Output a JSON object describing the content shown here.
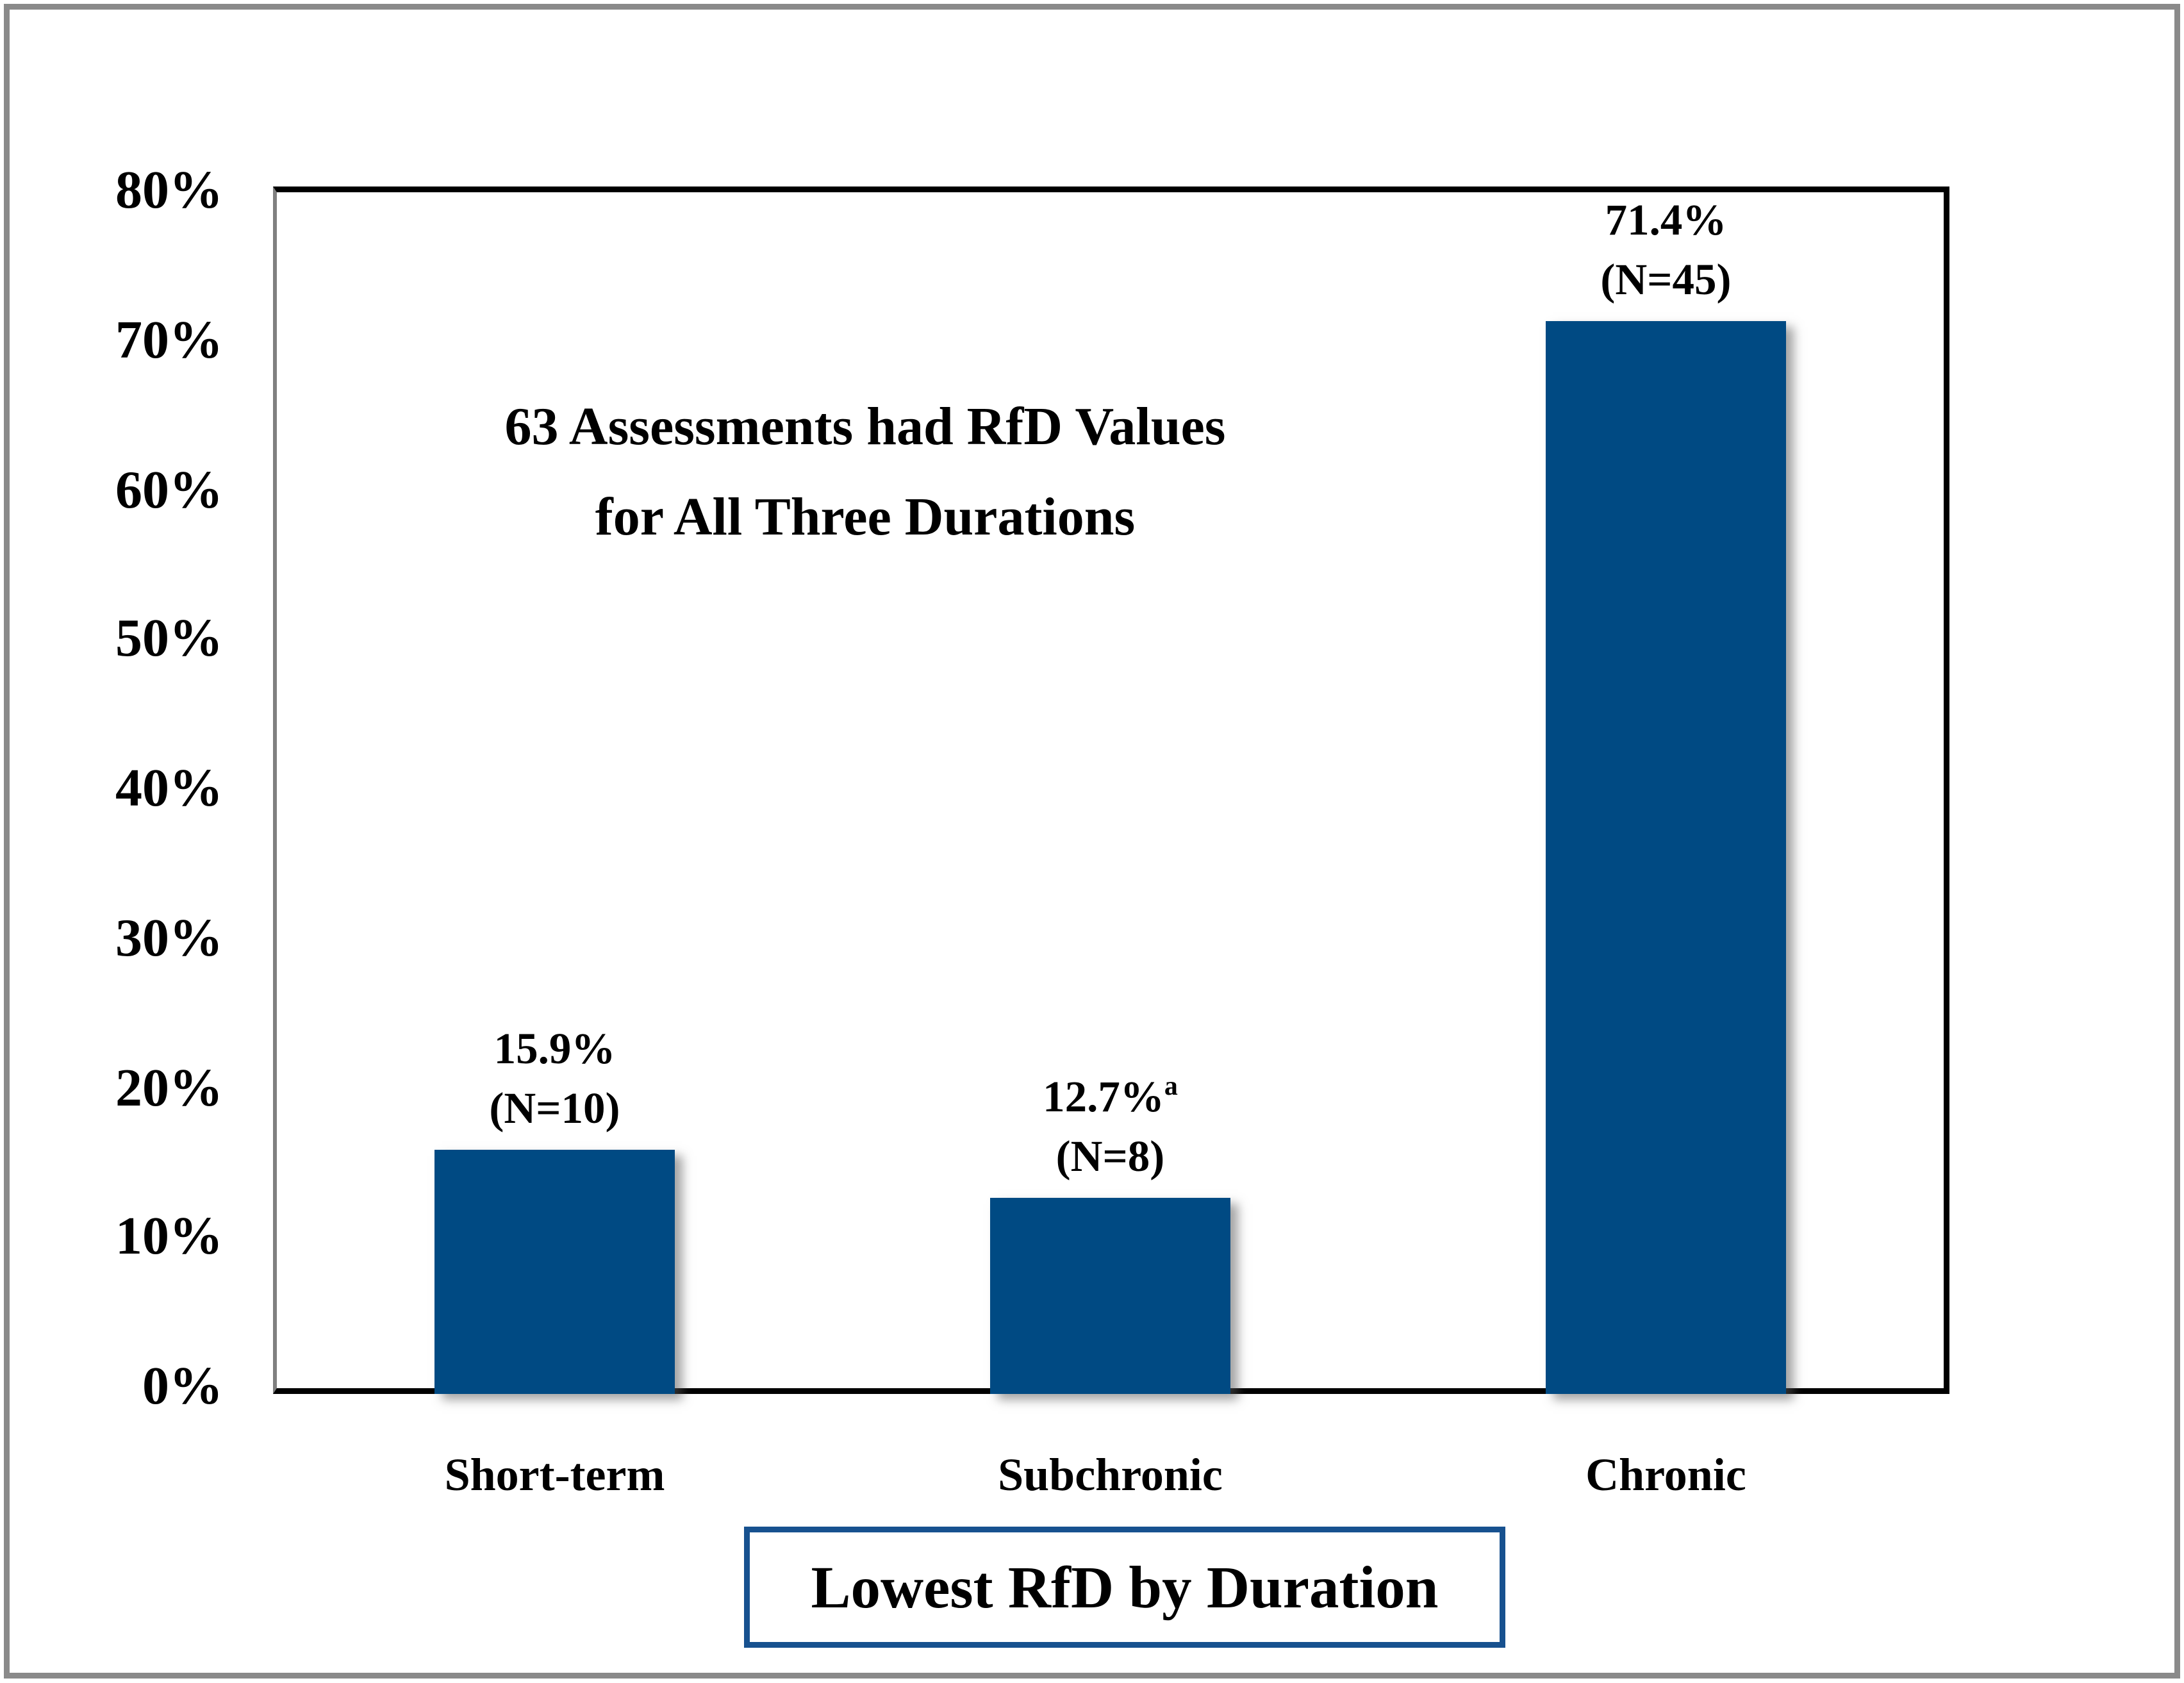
{
  "chart_data": {
    "type": "bar",
    "title": "",
    "categories": [
      "Short-term",
      "Subchronic",
      "Chronic"
    ],
    "values": [
      15.9,
      12.7,
      71.4
    ],
    "counts": [
      10,
      8,
      45
    ],
    "value_labels": [
      "15.9%",
      "12.7%",
      "71.4%"
    ],
    "footnote_markers": [
      "",
      "a",
      ""
    ],
    "count_labels": [
      "(N=10)",
      "(N=8)",
      "(N=45)"
    ],
    "yticks": [
      "0%",
      "10%",
      "20%",
      "30%",
      "40%",
      "50%",
      "60%",
      "70%",
      "80%"
    ],
    "ylim": [
      0,
      80
    ],
    "ytick_step": 10,
    "grid": false,
    "legend": "none",
    "annotation_lines": [
      "63 Assessments had RfD Values",
      "for All Three Durations"
    ],
    "xlabel": "Lowest RfD by Duration",
    "ylabel": "",
    "bar_color": "#004A83",
    "axis_box_border_color": "#17518F",
    "plot_border_color": "#000000",
    "y_axis_line_color": "#808080",
    "frame_color": "#8A8A8A",
    "background_color": "#FFFFFF",
    "text_color": "#000000"
  }
}
